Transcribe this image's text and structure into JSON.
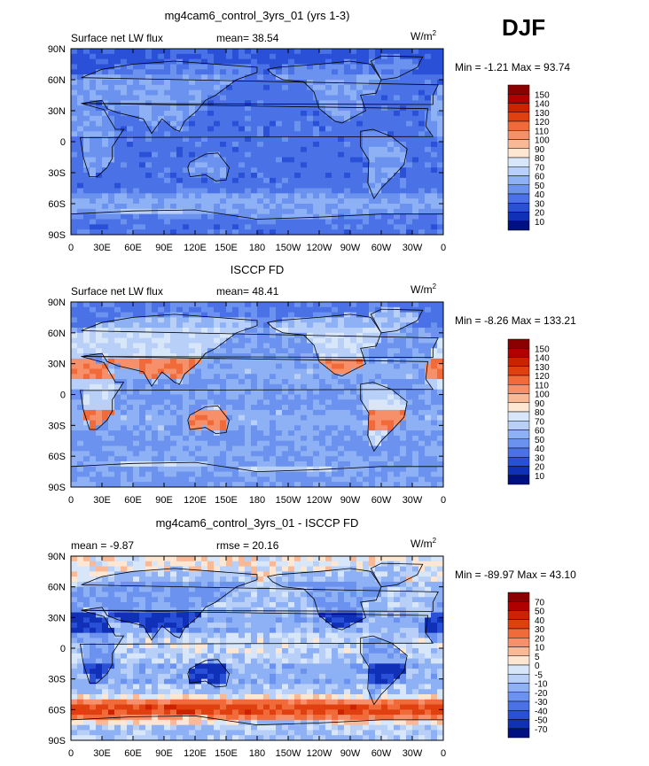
{
  "season": "DJF",
  "chart_data": [
    {
      "type": "heatmap",
      "title": "mg4cam6_control_3yrs_01 (yrs 1-3)",
      "left_label": "Surface net LW flux",
      "stat1": "mean=  38.54",
      "stat2": "",
      "units": "W/m",
      "units_sup": "2",
      "minmax": "Min =  -1.21 Max =  93.74",
      "x_ticks": [
        "0",
        "30E",
        "60E",
        "90E",
        "120E",
        "150E",
        "180",
        "150W",
        "120W",
        "90W",
        "60W",
        "30W",
        "0"
      ],
      "y_ticks": [
        "90N",
        "60N",
        "30N",
        "0",
        "30S",
        "60S",
        "90S"
      ],
      "xlim": [
        0,
        360
      ],
      "ylim": [
        -90,
        90
      ],
      "colorbar_levels": [
        "150",
        "140",
        "130",
        "120",
        "110",
        "100",
        "90",
        "80",
        "70",
        "60",
        "50",
        "40",
        "30",
        "20",
        "10"
      ],
      "colorbar_colors": [
        "#8b0000",
        "#b00000",
        "#cc2200",
        "#e04010",
        "#f06a3a",
        "#f6906a",
        "#f9b896",
        "#fde6d2",
        "#d8e6fa",
        "#b8d0f8",
        "#8eb0f4",
        "#6a92ee",
        "#4a72e6",
        "#2a50d8",
        "#1030b8",
        "#001080"
      ],
      "field": {
        "base": 35,
        "tropical": 0,
        "dry_tropics": 0,
        "southern_ocean": 18,
        "land_boost": 14,
        "arctic": -8,
        "noise": 6
      }
    },
    {
      "type": "heatmap",
      "title": "ISCCP FD",
      "left_label": "Surface net LW flux",
      "stat1": "mean=  48.41",
      "stat2": "",
      "units": "W/m",
      "units_sup": "2",
      "minmax": "Min =  -8.26 Max = 133.21",
      "x_ticks": [
        "0",
        "30E",
        "60E",
        "90E",
        "120E",
        "150E",
        "180",
        "150W",
        "120W",
        "90W",
        "60W",
        "30W",
        "0"
      ],
      "y_ticks": [
        "90N",
        "60N",
        "30N",
        "0",
        "30S",
        "60S",
        "90S"
      ],
      "xlim": [
        0,
        360
      ],
      "ylim": [
        -90,
        90
      ],
      "colorbar_levels": [
        "150",
        "140",
        "130",
        "120",
        "110",
        "100",
        "90",
        "80",
        "70",
        "60",
        "50",
        "40",
        "30",
        "20",
        "10"
      ],
      "colorbar_colors": [
        "#8b0000",
        "#b00000",
        "#cc2200",
        "#e04010",
        "#f06a3a",
        "#f6906a",
        "#f9b896",
        "#fde6d2",
        "#d8e6fa",
        "#b8d0f8",
        "#8eb0f4",
        "#6a92ee",
        "#4a72e6",
        "#2a50d8",
        "#1030b8",
        "#001080"
      ],
      "field": {
        "base": 48,
        "tropical": 0,
        "dry_tropics": 40,
        "southern_ocean": 2,
        "land_boost": 20,
        "arctic": -10,
        "noise": 7
      }
    },
    {
      "type": "heatmap",
      "title": "mg4cam6_control_3yrs_01 - ISCCP FD",
      "left_label": "mean =  -9.87",
      "stat1": "rmse =  20.16",
      "stat2": "",
      "units": "W/m",
      "units_sup": "2",
      "minmax": "Min = -89.97 Max =  43.10",
      "x_ticks": [
        "0",
        "30E",
        "60E",
        "90E",
        "120E",
        "150E",
        "180",
        "150W",
        "120W",
        "90W",
        "60W",
        "30W",
        "0"
      ],
      "y_ticks": [
        "90N",
        "60N",
        "30N",
        "0",
        "30S",
        "60S",
        "90S"
      ],
      "xlim": [
        0,
        360
      ],
      "ylim": [
        -90,
        90
      ],
      "colorbar_levels": [
        "70",
        "50",
        "40",
        "30",
        "20",
        "10",
        "5",
        "0",
        "-5",
        "-10",
        "-20",
        "-30",
        "-40",
        "-50",
        "-70"
      ],
      "colorbar_colors": [
        "#8b0000",
        "#b00000",
        "#cc2200",
        "#e04010",
        "#f06a3a",
        "#f6906a",
        "#f9b896",
        "#fde6d2",
        "#d8e6fa",
        "#b8d0f8",
        "#8eb0f4",
        "#6a92ee",
        "#4a72e6",
        "#2a50d8",
        "#1030b8",
        "#001080"
      ],
      "field": {
        "base": -10,
        "tropical": 5,
        "dry_tropics": -30,
        "southern_ocean": 45,
        "land_boost": -12,
        "arctic": 10,
        "noise": 8
      }
    }
  ]
}
